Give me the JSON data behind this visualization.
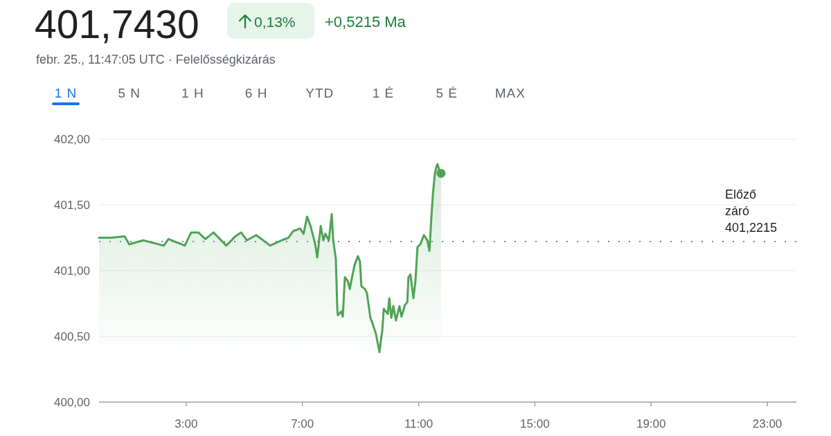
{
  "chart_data": {
    "type": "area",
    "title": "401,7430",
    "subtitle": "febr. 25., 11:47:05 UTC · Felelősségkizárás",
    "annotations": [
      "0,13%",
      "+0,5215 Ma",
      "1 N",
      "5 N",
      "1 H",
      "6 H",
      "YTD",
      "1 É",
      "5 É",
      "MAX"
    ],
    "xlim": [
      0,
      24
    ],
    "xticks": [
      {
        "value": 3,
        "label": "3:00"
      },
      {
        "value": 7,
        "label": "7:00"
      },
      {
        "value": 11,
        "label": "11:00"
      },
      {
        "value": 15,
        "label": "15:00"
      },
      {
        "value": 19,
        "label": "19:00"
      },
      {
        "value": 23,
        "label": "23:00"
      }
    ],
    "ylim": [
      400,
      402
    ],
    "yticks": [
      {
        "value": 400,
        "label": "400,00"
      },
      {
        "value": 400.5,
        "label": "400,50"
      },
      {
        "value": 401,
        "label": "401,00"
      },
      {
        "value": 401.5,
        "label": "401,50"
      },
      {
        "value": 402,
        "label": "402,00"
      }
    ],
    "grid": "y",
    "ref_lines": [
      {
        "axis": "y",
        "value": 401.2215,
        "label": "Előző záró 401,2215",
        "color": "#80868b",
        "line_style": "dotted"
      }
    ],
    "series": [
      {
        "color": "#4ea356",
        "x": [
          0,
          0.41,
          0.88,
          1.04,
          1.52,
          2.23,
          2.39,
          2.95,
          3.17,
          3.42,
          3.66,
          3.94,
          4.38,
          4.69,
          4.89,
          5.09,
          5.41,
          5.89,
          6.28,
          6.52,
          6.68,
          6.92,
          7.04,
          7.16,
          7.28,
          7.44,
          7.51,
          7.63,
          7.72,
          7.79,
          7.91,
          8.01,
          8.06,
          8.15,
          8.2,
          8.22,
          8.34,
          8.39,
          8.46,
          8.56,
          8.63,
          8.7,
          8.79,
          8.91,
          8.98,
          9.03,
          9.15,
          9.22,
          9.34,
          9.41,
          9.53,
          9.65,
          9.75,
          9.8,
          9.94,
          9.99,
          10.06,
          10.13,
          10.22,
          10.34,
          10.41,
          10.53,
          10.61,
          10.65,
          10.72,
          10.82,
          10.89,
          10.96,
          11.06,
          11.18,
          11.3,
          11.37,
          11.44,
          11.49,
          11.56,
          11.61,
          11.65,
          11.7,
          11.77
        ],
        "values": [
          401.25,
          401.25,
          401.26,
          401.2,
          401.23,
          401.19,
          401.24,
          401.19,
          401.29,
          401.29,
          401.24,
          401.29,
          401.19,
          401.26,
          401.29,
          401.23,
          401.27,
          401.19,
          401.23,
          401.25,
          401.3,
          401.32,
          401.28,
          401.41,
          401.34,
          401.2,
          401.1,
          401.34,
          401.23,
          401.28,
          401.23,
          401.43,
          401.23,
          401.09,
          400.71,
          400.66,
          400.69,
          400.65,
          400.95,
          400.92,
          400.86,
          400.94,
          401.04,
          401.11,
          401.07,
          400.88,
          400.86,
          400.83,
          400.64,
          400.6,
          400.52,
          400.38,
          400.55,
          400.71,
          400.67,
          400.79,
          400.64,
          400.73,
          400.62,
          400.73,
          400.65,
          400.74,
          400.76,
          400.95,
          400.97,
          400.79,
          400.92,
          401.18,
          401.2,
          401.27,
          401.23,
          401.15,
          401.41,
          401.58,
          401.74,
          401.79,
          401.81,
          401.77,
          401.74
        ]
      },
      {
        "type": "scatter",
        "color": "#4ea356",
        "marker": "circle",
        "x": [
          11.77
        ],
        "values": [
          401.74
        ]
      }
    ]
  }
}
